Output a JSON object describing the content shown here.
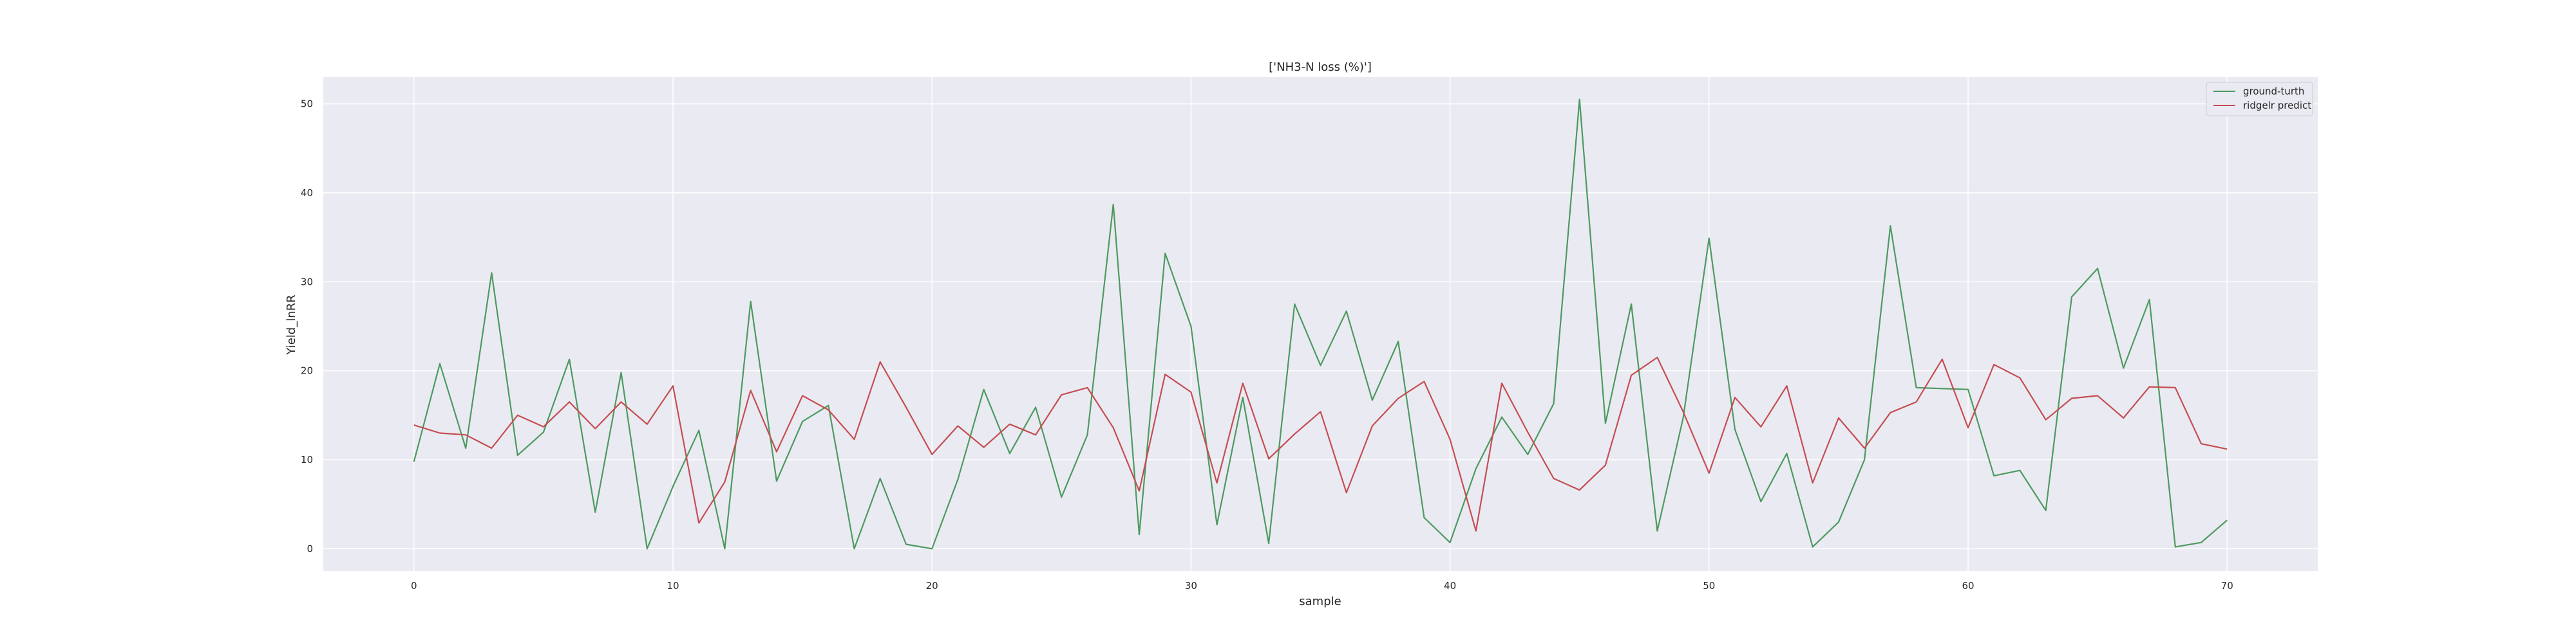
{
  "chart_data": {
    "type": "line",
    "title": "['NH3-N loss (%)']",
    "xlabel": "sample",
    "ylabel": "Yield_lnRR",
    "xlim": [
      -3.5,
      73.5
    ],
    "ylim": [
      -2.5,
      53
    ],
    "xticks": [
      0,
      10,
      20,
      30,
      40,
      50,
      60,
      70
    ],
    "yticks": [
      0,
      10,
      20,
      30,
      40,
      50
    ],
    "grid": true,
    "legend_position": "top-right",
    "x": [
      0,
      1,
      2,
      3,
      4,
      5,
      6,
      7,
      8,
      9,
      10,
      11,
      12,
      13,
      14,
      15,
      16,
      17,
      18,
      19,
      20,
      21,
      22,
      23,
      24,
      25,
      26,
      27,
      28,
      29,
      30,
      31,
      32,
      33,
      34,
      35,
      36,
      37,
      38,
      39,
      40,
      41,
      42,
      43,
      44,
      45,
      46,
      47,
      48,
      49,
      50,
      51,
      52,
      53,
      54,
      55,
      56,
      57,
      58,
      59,
      60,
      61,
      62,
      63,
      64,
      65,
      66,
      67,
      68,
      69,
      70
    ],
    "series": [
      {
        "name": "ground-turth",
        "color": "#4c9a5f",
        "values": [
          9.8,
          20.8,
          11.3,
          31.0,
          10.5,
          13.1,
          21.3,
          4.1,
          19.8,
          0.0,
          7.0,
          13.3,
          0.0,
          27.8,
          7.6,
          14.3,
          16.1,
          0.0,
          7.9,
          0.5,
          0.0,
          7.8,
          17.9,
          10.7,
          15.9,
          5.8,
          12.8,
          38.7,
          1.6,
          33.2,
          25.0,
          2.7,
          17.0,
          0.6,
          27.5,
          20.6,
          26.7,
          16.7,
          23.3,
          3.5,
          0.7,
          9.0,
          14.8,
          10.6,
          16.3,
          50.5,
          14.1,
          27.5,
          2.0,
          14.7,
          34.9,
          13.4,
          5.3,
          10.7,
          0.2,
          3.0,
          10.0,
          36.3,
          18.1,
          18.0,
          17.9,
          8.2,
          8.8,
          4.3,
          28.3,
          31.5,
          20.3,
          28.0,
          0.2,
          0.7,
          3.2
        ]
      },
      {
        "name": "ridgelr predict",
        "color": "#c44e52",
        "values": [
          13.9,
          13.0,
          12.8,
          11.3,
          15.0,
          13.7,
          16.5,
          13.5,
          16.5,
          14.0,
          18.3,
          2.9,
          7.5,
          17.8,
          10.9,
          17.2,
          15.6,
          12.3,
          21.0,
          15.9,
          10.6,
          13.8,
          11.4,
          14.0,
          12.8,
          17.3,
          18.1,
          13.6,
          6.5,
          19.6,
          17.6,
          7.4,
          18.6,
          10.1,
          12.9,
          15.4,
          6.3,
          13.8,
          16.9,
          18.8,
          12.3,
          2.0,
          18.6,
          13.1,
          7.9,
          6.6,
          9.4,
          19.5,
          21.5,
          15.4,
          8.5,
          17.0,
          13.7,
          18.3,
          7.4,
          14.7,
          11.3,
          15.3,
          16.5,
          21.3,
          13.6,
          20.7,
          19.2,
          14.5,
          16.9,
          17.2,
          14.7,
          18.2,
          18.1,
          11.8,
          11.2
        ]
      }
    ]
  }
}
